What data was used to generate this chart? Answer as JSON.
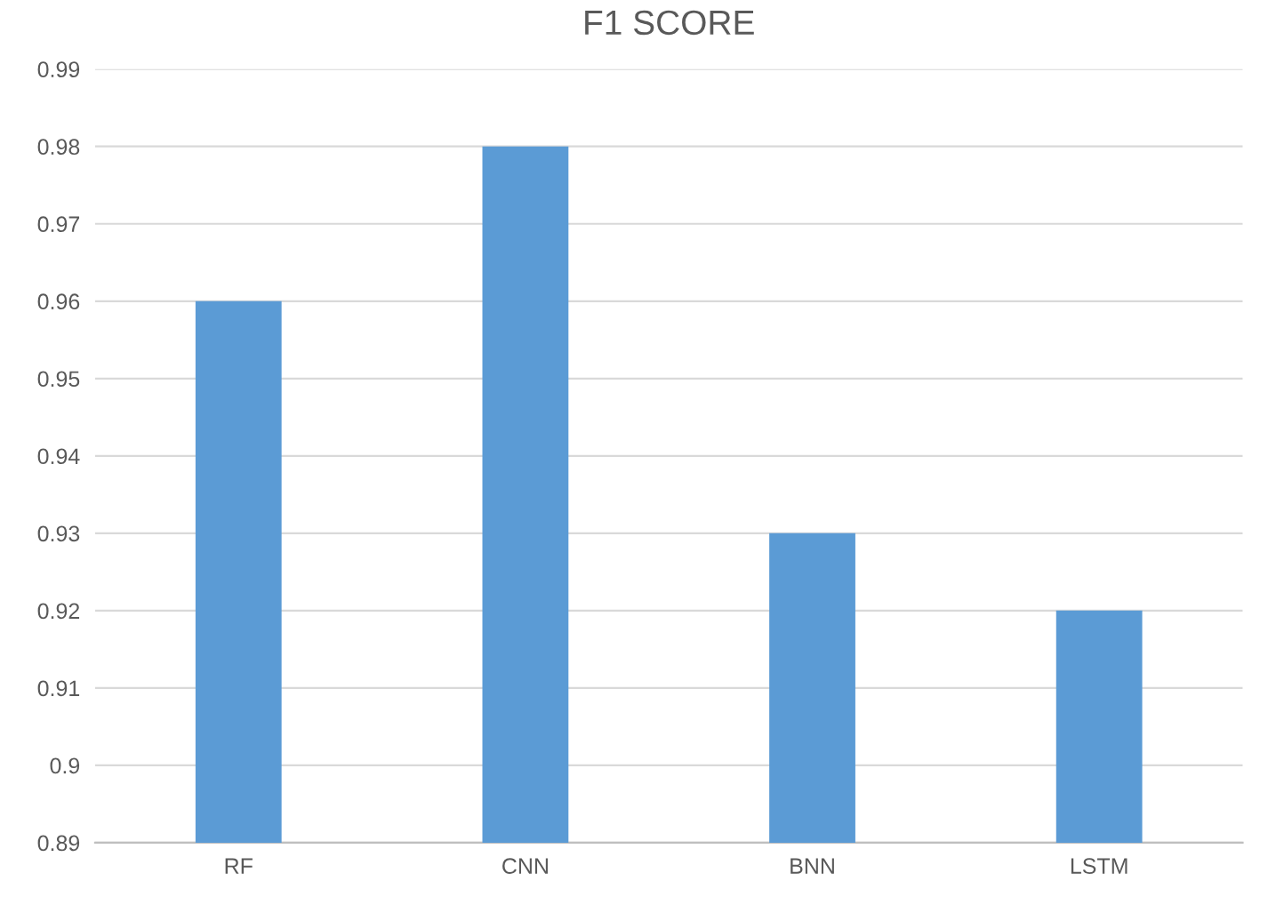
{
  "chart_data": {
    "type": "bar",
    "title": "F1 SCORE",
    "categories": [
      "RF",
      "CNN",
      "BNN",
      "LSTM"
    ],
    "values": [
      0.96,
      0.98,
      0.93,
      0.92
    ],
    "color": "#5b9bd5",
    "ylim": [
      0.89,
      0.99
    ],
    "yticks": [
      0.89,
      0.9,
      0.91,
      0.92,
      0.93,
      0.94,
      0.95,
      0.96,
      0.97,
      0.98,
      0.99
    ],
    "grid": "y"
  }
}
